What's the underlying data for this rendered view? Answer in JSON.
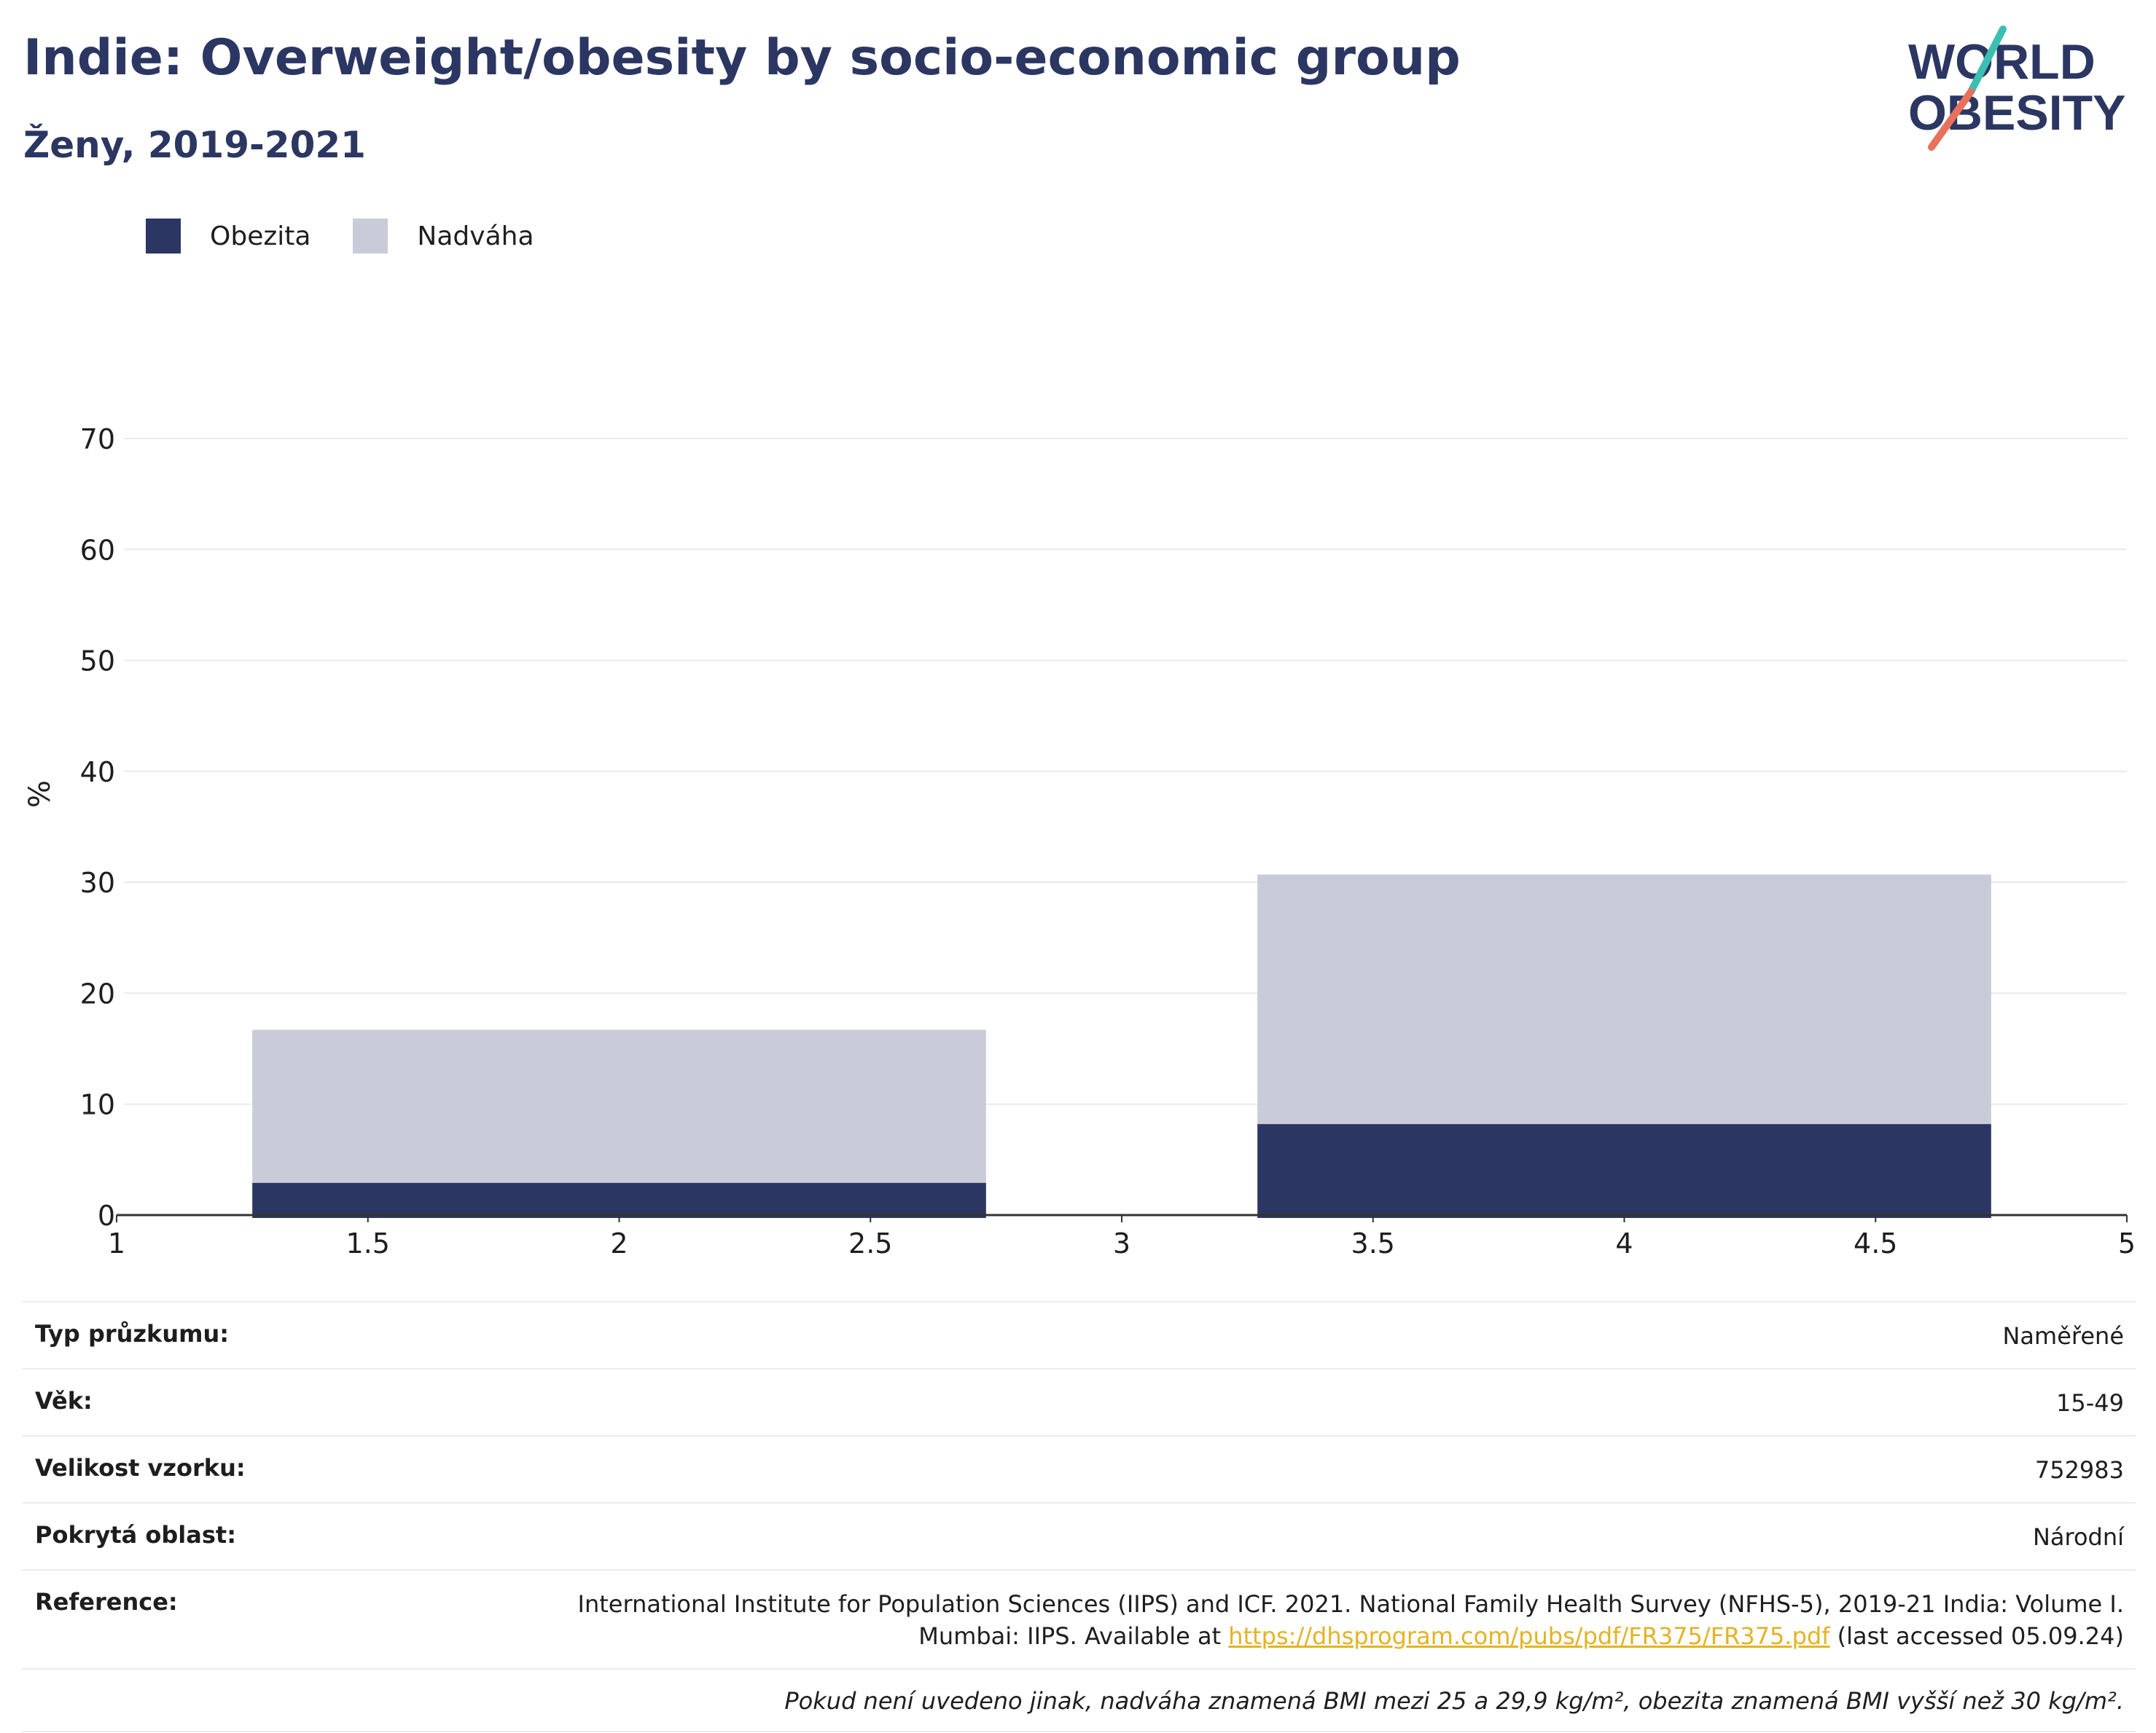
{
  "header": {
    "title": "Indie: Overweight/obesity by socio-economic group",
    "subtitle": "Ženy, 2019-2021"
  },
  "logo": {
    "line1": "WORLD",
    "line2": "OBESITY"
  },
  "legend": [
    {
      "label": "Obezita",
      "color": "#2b3662"
    },
    {
      "label": "Nadváha",
      "color": "#c9ccd8"
    }
  ],
  "chart_data": {
    "type": "bar",
    "stacked": true,
    "ylabel": "%",
    "xlabel": "",
    "ylim": [
      0,
      70
    ],
    "xlim": [
      1,
      5
    ],
    "yticks": [
      0,
      10,
      20,
      30,
      40,
      50,
      60,
      70
    ],
    "xticks": [
      "1",
      "1.5",
      "2",
      "2.5",
      "3",
      "3.5",
      "4",
      "4.5",
      "5"
    ],
    "grid": true,
    "bars": [
      {
        "x_start": 1.27,
        "x_end": 2.73,
        "obezita": 2.9,
        "nadvaha": 13.8
      },
      {
        "x_start": 3.27,
        "x_end": 4.73,
        "obezita": 8.2,
        "nadvaha": 22.5
      }
    ],
    "series": [
      {
        "name": "Obezita",
        "color": "#2b3662",
        "values": [
          2.9,
          8.2
        ]
      },
      {
        "name": "Nadváha",
        "color": "#c9ccd8",
        "values": [
          13.8,
          22.5
        ]
      }
    ]
  },
  "meta": {
    "survey_type_label": "Typ průzkumu:",
    "survey_type_value": "Naměřené",
    "age_label": "Věk:",
    "age_value": "15-49",
    "sample_label": "Velikost vzorku:",
    "sample_value": "752983",
    "area_label": "Pokrytá oblast:",
    "area_value": "Národní",
    "reference_label": "Reference:",
    "reference_line1": "International Institute for Population Sciences (IIPS) and ICF. 2021. National Family Health Survey (NFHS-5), 2019-21 India: Volume I.",
    "reference_line2_pre": "Mumbai: IIPS. Available at ",
    "reference_link": "https://dhsprogram.com/pubs/pdf/FR375/FR375.pdf",
    "reference_line2_post": " (last accessed 05.09.24)",
    "note": "Pokud není uvedeno jinak, nadváha znamená BMI mezi 25 a 29,9 kg/m², obezita znamená BMI vyšší než 30 kg/m²."
  }
}
